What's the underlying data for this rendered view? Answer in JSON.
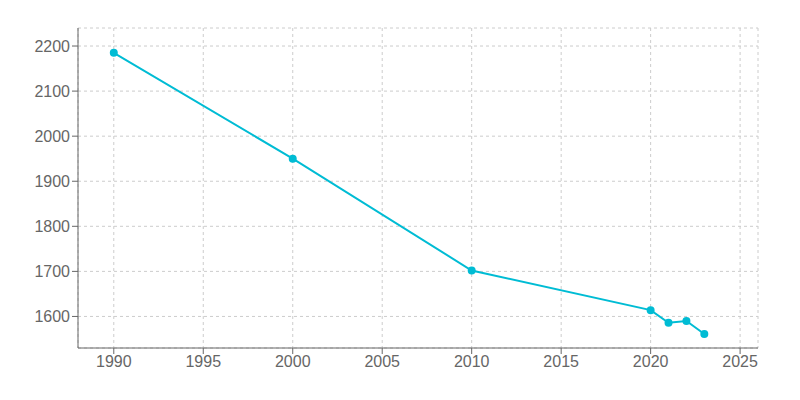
{
  "chart_data": {
    "type": "line",
    "x": [
      1990,
      2000,
      2010,
      2020,
      2021,
      2022,
      2023
    ],
    "values": [
      2185,
      1950,
      1702,
      1614,
      1586,
      1590,
      1561
    ],
    "color": "#00BCD4",
    "marker": "circle",
    "xlim": [
      1988,
      2026
    ],
    "ylim": [
      1530,
      2240
    ],
    "xticks": [
      1990,
      1995,
      2000,
      2005,
      2010,
      2015,
      2020,
      2025
    ],
    "yticks": [
      1600,
      1700,
      1800,
      1900,
      2000,
      2100,
      2200
    ],
    "grid": true
  }
}
